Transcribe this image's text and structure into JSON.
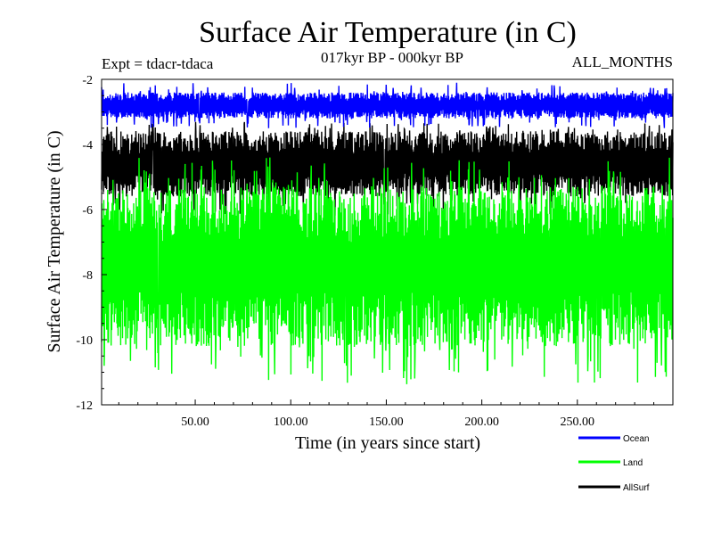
{
  "chart_data": {
    "type": "line",
    "title": "Surface Air Temperature (in C)",
    "subtitle": "017kyr BP - 000kyr BP",
    "experiment": "Expt = tdacr-tdaca",
    "months": "ALL_MONTHS",
    "xlabel": "Time (in years since start)",
    "ylabel": "Surface Air Temperature (in C)",
    "xlim": [
      1,
      300
    ],
    "ylim": [
      -12,
      -2
    ],
    "x_ticks": [
      50,
      100,
      150,
      200,
      250
    ],
    "x_tick_labels": [
      "50.00",
      "100.00",
      "150.00",
      "200.00",
      "250.00"
    ],
    "y_ticks": [
      -12,
      -10,
      -8,
      -6,
      -4,
      -2
    ],
    "y_tick_labels": [
      "-12",
      "-10",
      "-8",
      "-6",
      "-4",
      "-2"
    ],
    "series": [
      {
        "name": "Ocean",
        "color": "#0000ff",
        "min": -3.5,
        "max": -2.1,
        "typical_low": -3.2,
        "typical_high": -2.4
      },
      {
        "name": "AllSurf",
        "color": "#000000",
        "min": -6.2,
        "max": -3.3,
        "typical_low": -5.6,
        "typical_high": -3.6
      },
      {
        "name": "Land",
        "color": "#00ff00",
        "min": -11.4,
        "max": -4.4,
        "typical_low": -10.2,
        "typical_high": -5.3
      }
    ],
    "legend": [
      {
        "label": "Ocean",
        "color": "#0000ff"
      },
      {
        "label": "Land",
        "color": "#00ff00"
      },
      {
        "label": "AllSurf",
        "color": "#000000"
      }
    ]
  }
}
